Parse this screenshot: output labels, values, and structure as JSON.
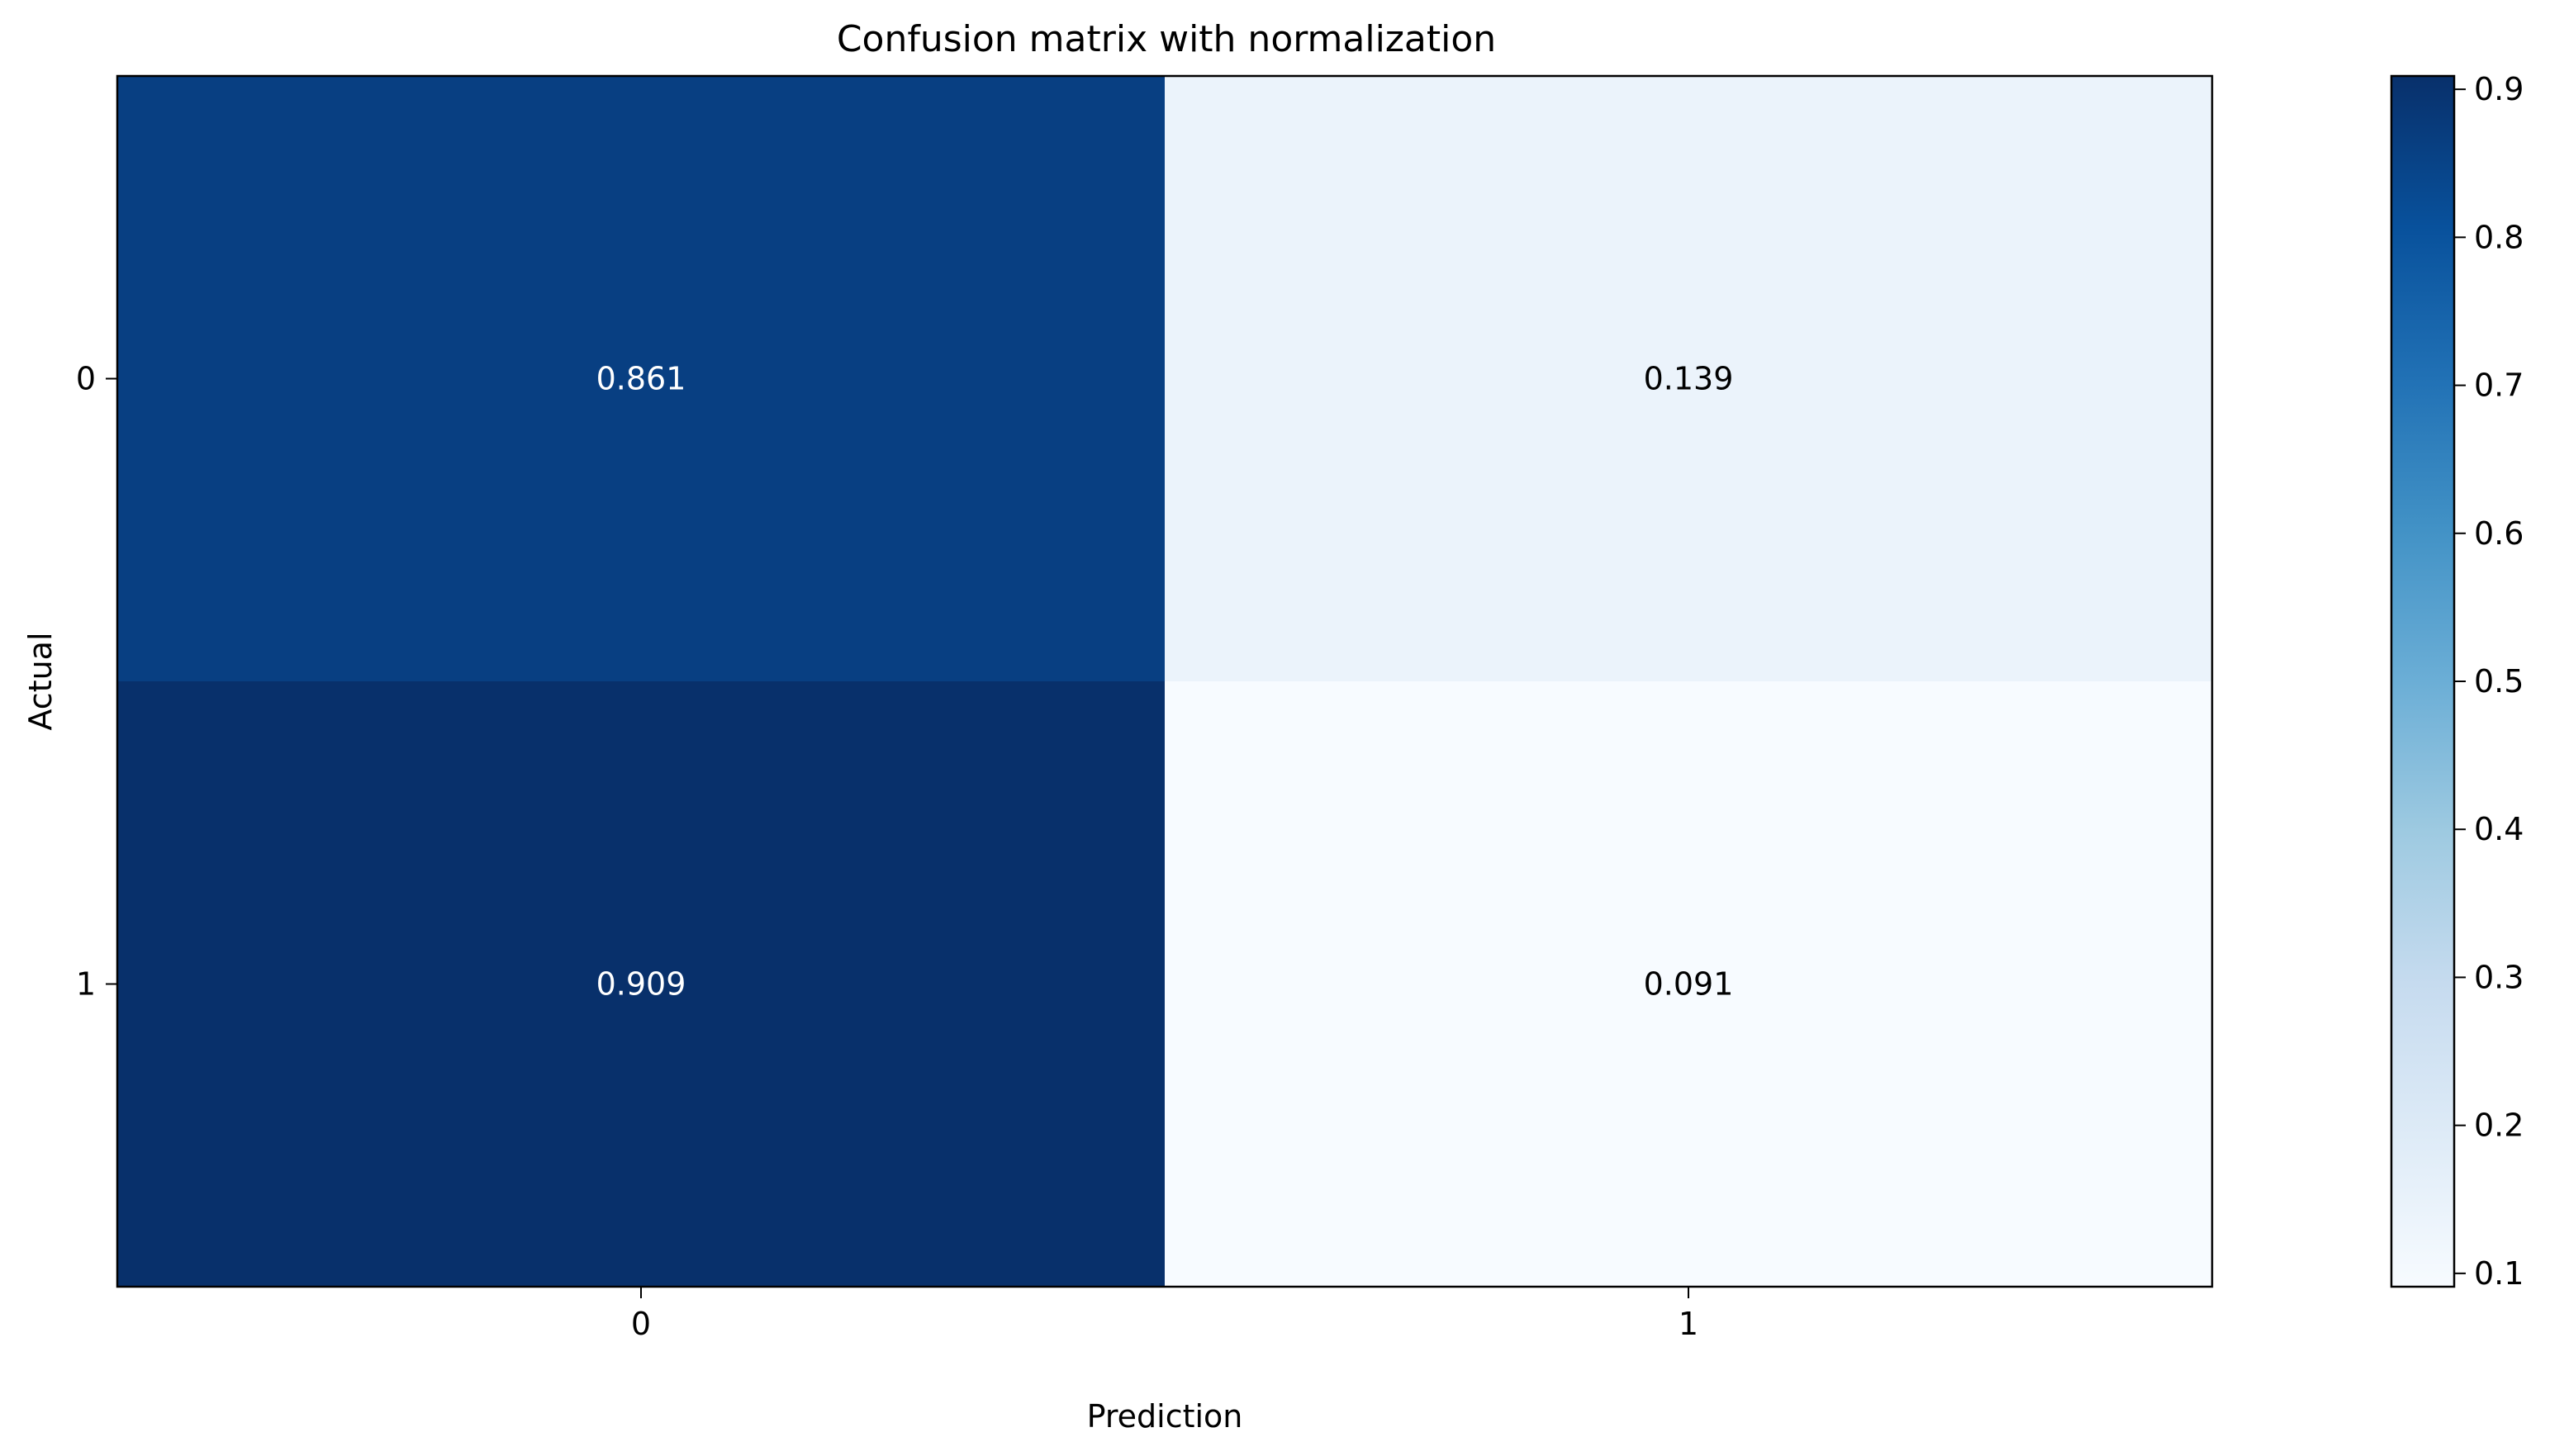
{
  "chart_data": {
    "type": "heatmap",
    "title": "Confusion matrix with normalization",
    "xlabel": "Prediction",
    "ylabel": "Actual",
    "x_categories": [
      "0",
      "1"
    ],
    "y_categories": [
      "0",
      "1"
    ],
    "values": [
      [
        0.861,
        0.139
      ],
      [
        0.909,
        0.091
      ]
    ],
    "cell_labels": [
      [
        "0.861",
        "0.139"
      ],
      [
        "0.909",
        "0.091"
      ]
    ],
    "colormap": "Blues",
    "color_range": [
      0.091,
      0.909
    ],
    "colorbar": {
      "ticks": [
        0.1,
        0.2,
        0.3,
        0.4,
        0.5,
        0.6,
        0.7,
        0.8,
        0.9
      ],
      "tick_labels": [
        "0.1",
        "0.2",
        "0.3",
        "0.4",
        "0.5",
        "0.6",
        "0.7",
        "0.8",
        "0.9"
      ]
    },
    "colors": {
      "low": "#f7fbff",
      "high": "#08306b",
      "text_on_dark": "#ffffff",
      "text_on_light": "#000000"
    }
  }
}
